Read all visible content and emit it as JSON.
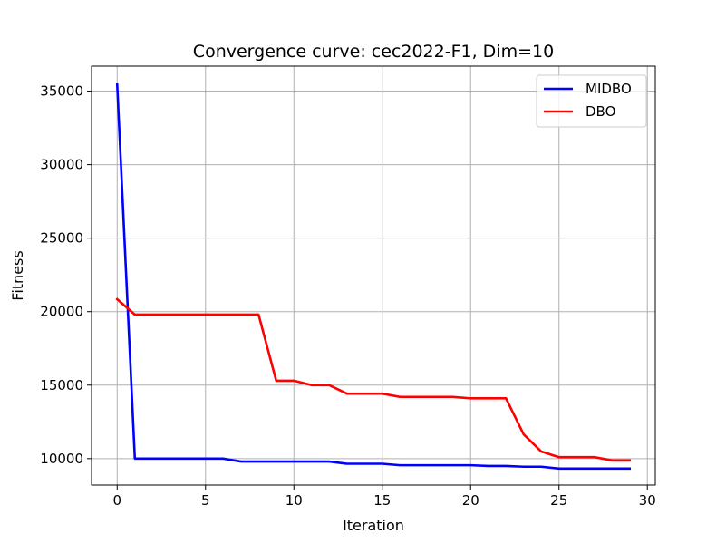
{
  "chart_data": {
    "type": "line",
    "title": "Convergence curve:  cec2022-F1, Dim=10",
    "xlabel": "Iteration",
    "ylabel": "Fitness",
    "xlim": [
      -1.45,
      30.45
    ],
    "ylim": [
      8200,
      36700
    ],
    "grid": true,
    "legend_position": "top-right",
    "x_ticks": [
      0,
      5,
      10,
      15,
      20,
      25,
      30
    ],
    "x_tick_labels": [
      "0",
      "5",
      "10",
      "15",
      "20",
      "25",
      "30"
    ],
    "y_ticks": [
      10000,
      15000,
      20000,
      25000,
      30000,
      35000
    ],
    "y_tick_labels": [
      "10000",
      "15000",
      "20000",
      "25000",
      "30000",
      "35000"
    ],
    "x": [
      0,
      1,
      2,
      3,
      4,
      5,
      6,
      7,
      8,
      9,
      10,
      11,
      12,
      13,
      14,
      15,
      16,
      17,
      18,
      19,
      20,
      21,
      22,
      23,
      24,
      25,
      26,
      27,
      28,
      29
    ],
    "series": [
      {
        "name": "MIDBO",
        "color": "#0000ff",
        "values": [
          35450,
          10000,
          10000,
          10000,
          10000,
          10000,
          10000,
          9800,
          9800,
          9800,
          9800,
          9800,
          9800,
          9650,
          9650,
          9650,
          9550,
          9550,
          9550,
          9550,
          9550,
          9500,
          9500,
          9450,
          9450,
          9320,
          9320,
          9320,
          9320,
          9320
        ]
      },
      {
        "name": "DBO",
        "color": "#ff0000",
        "values": [
          20850,
          19800,
          19800,
          19800,
          19800,
          19800,
          19800,
          19800,
          19800,
          15300,
          15300,
          15000,
          15000,
          14420,
          14420,
          14420,
          14200,
          14200,
          14200,
          14200,
          14100,
          14100,
          14100,
          11650,
          10480,
          10100,
          10100,
          10100,
          9880,
          9880
        ]
      }
    ]
  }
}
